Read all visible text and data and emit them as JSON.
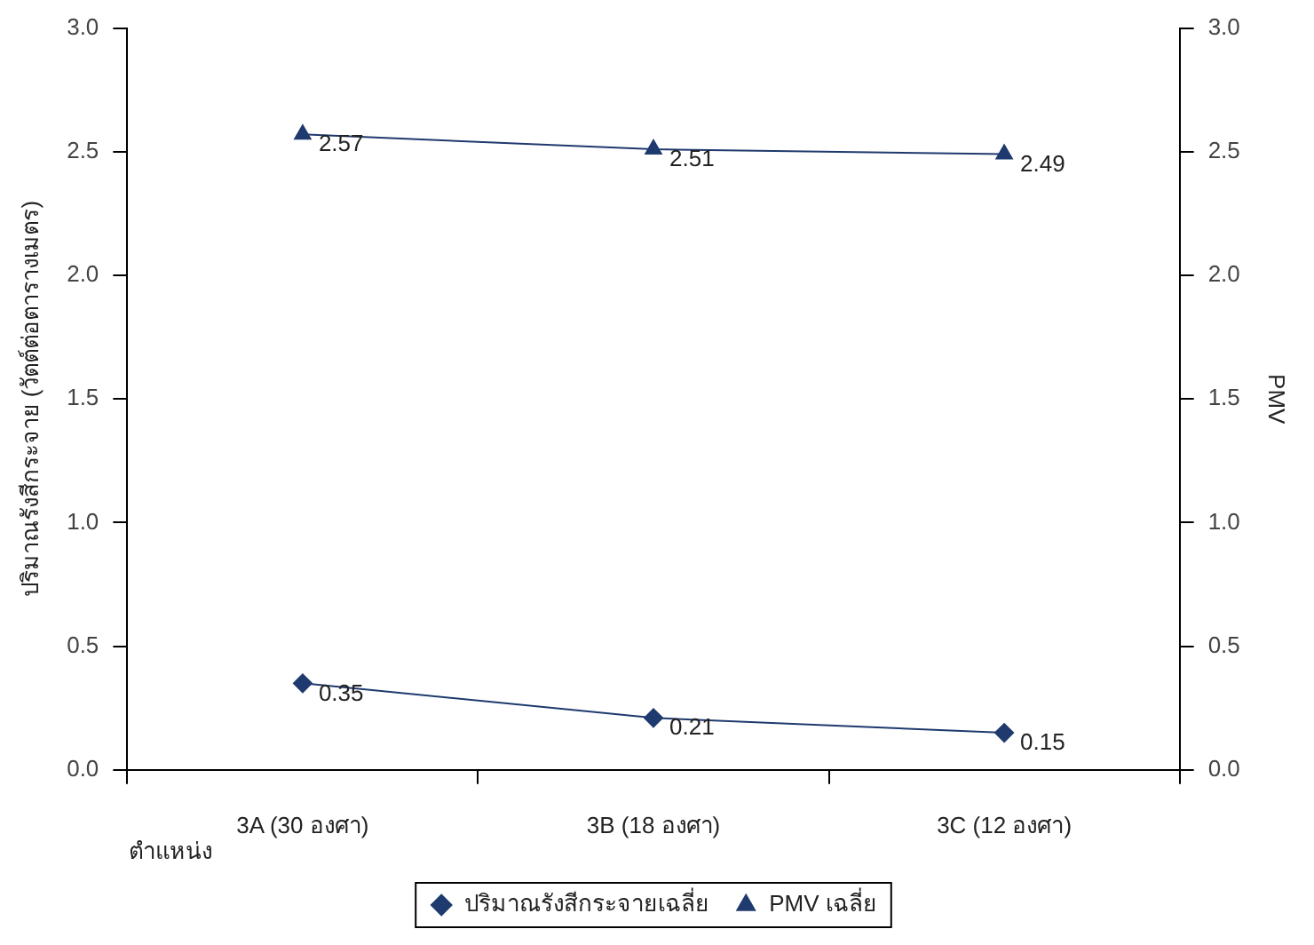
{
  "chart_data": {
    "type": "line",
    "xlabel": "ตำแหน่ง",
    "ylabel": "ปริมาณรังสีกระจาย (วัตต์ต่อตารางเมตร)",
    "y2label": "PMV",
    "categories": [
      "3A (30 องศา)",
      "3B (18 องศา)",
      "3C (12 องศา)"
    ],
    "series": [
      {
        "name": "ปริมาณรังสีกระจายเฉลี่ย",
        "color": "#1f3a6e",
        "values": [
          0.35,
          0.21,
          0.15
        ],
        "marker": "diamond"
      },
      {
        "name": "PMV เฉลี่ย",
        "color": "#1f3a6e",
        "values": [
          2.57,
          2.51,
          2.49
        ],
        "marker": "triangle",
        "axis": "y2"
      }
    ],
    "ylim": [
      0,
      3
    ],
    "yticks": [
      {
        "value": 0,
        "label": "0.0"
      },
      {
        "value": 0.5,
        "label": "0.5"
      },
      {
        "value": 1,
        "label": "1.0"
      },
      {
        "value": 1.5,
        "label": "1.5"
      },
      {
        "value": 2,
        "label": "2.0"
      },
      {
        "value": 2.5,
        "label": "2.5"
      },
      {
        "value": 3,
        "label": "3.0"
      }
    ],
    "y2lim": [
      0,
      3
    ],
    "y2ticks": [
      {
        "value": 0,
        "label": "0.0"
      },
      {
        "value": 0.5,
        "label": "0.5"
      },
      {
        "value": 1,
        "label": "1.0"
      },
      {
        "value": 1.5,
        "label": "1.5"
      },
      {
        "value": 2,
        "label": "2.0"
      },
      {
        "value": 2.5,
        "label": "2.5"
      },
      {
        "value": 3,
        "label": "3.0"
      }
    ],
    "data_labels": true,
    "grid": false,
    "legend": "bottom",
    "line_style": "solid"
  }
}
